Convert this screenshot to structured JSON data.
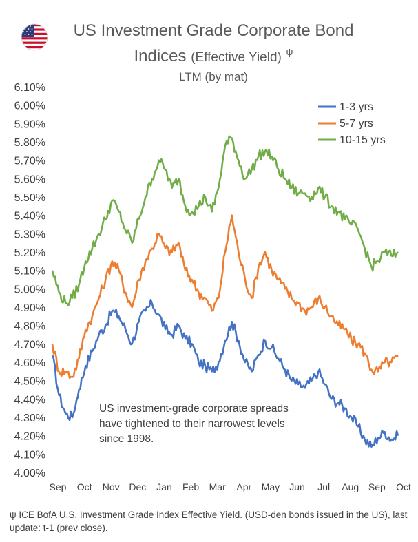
{
  "header": {
    "flag_icon": "us-flag-icon",
    "title_line1": "US Investment Grade Corporate Bond",
    "title_line2_main": "Indices",
    "title_line2_paren": "(Effective Yield)",
    "title_line2_mark": "ψ",
    "subtitle": "LTM (by mat)"
  },
  "footnote": "ψ ICE BofA U.S. Investment Grade Index Effective Yield. (USD-den bonds issued in the US), last update: t-1 (prev close).",
  "chart_data": {
    "type": "line",
    "title": "US Investment Grade Corporate Bond Indices (Effective Yield) ψ",
    "subtitle": "LTM (by mat)",
    "ylim": [
      4.0,
      6.1
    ],
    "yticks": [
      "4.00%",
      "4.10%",
      "4.20%",
      "4.30%",
      "4.40%",
      "4.50%",
      "4.60%",
      "4.70%",
      "4.80%",
      "4.90%",
      "5.00%",
      "5.10%",
      "5.20%",
      "5.30%",
      "5.40%",
      "5.50%",
      "5.60%",
      "5.70%",
      "5.80%",
      "5.90%",
      "6.00%",
      "6.10%"
    ],
    "xticks": [
      "Sep",
      "Oct",
      "Nov",
      "Dec",
      "Jan",
      "Feb",
      "Mar",
      "Apr",
      "May",
      "Jun",
      "Jul",
      "Aug",
      "Sep",
      "Oct"
    ],
    "grid": false,
    "legend_position": "top-right",
    "annotation": [
      "US investment-grade corporate spreads",
      "have tightened to their narrowest levels",
      "since 1998."
    ],
    "x": [
      0,
      0.25,
      0.5,
      0.75,
      1,
      1.25,
      1.5,
      1.75,
      2,
      2.25,
      2.5,
      2.75,
      3,
      3.25,
      3.5,
      3.75,
      4,
      4.25,
      4.5,
      4.75,
      5,
      5.25,
      5.5,
      5.75,
      6,
      6.25,
      6.5,
      6.75,
      7,
      7.25,
      7.5,
      7.75,
      8,
      8.25,
      8.5,
      8.75,
      9,
      9.25,
      9.5,
      9.75,
      10,
      10.25,
      10.5,
      10.75,
      11,
      11.25,
      11.5,
      11.75,
      12,
      12.25,
      12.5,
      12.75,
      13
    ],
    "series": [
      {
        "name": "1-3 yrs",
        "color": "#4472C4",
        "values": [
          4.64,
          4.42,
          4.32,
          4.3,
          4.45,
          4.58,
          4.66,
          4.75,
          4.8,
          4.88,
          4.85,
          4.78,
          4.7,
          4.82,
          4.88,
          4.92,
          4.86,
          4.78,
          4.75,
          4.8,
          4.73,
          4.7,
          4.6,
          4.58,
          4.55,
          4.6,
          4.72,
          4.82,
          4.72,
          4.6,
          4.55,
          4.64,
          4.72,
          4.68,
          4.62,
          4.56,
          4.5,
          4.48,
          4.46,
          4.5,
          4.55,
          4.48,
          4.4,
          4.38,
          4.35,
          4.3,
          4.25,
          4.18,
          4.14,
          4.19,
          4.22,
          4.18,
          4.2
        ]
      },
      {
        "name": "5-7 yrs",
        "color": "#ED7D31",
        "values": [
          4.7,
          4.55,
          4.55,
          4.52,
          4.62,
          4.78,
          4.85,
          4.95,
          5.05,
          5.15,
          5.1,
          4.98,
          4.9,
          5.05,
          5.15,
          5.22,
          5.3,
          5.22,
          5.2,
          5.25,
          5.1,
          5.05,
          4.98,
          4.95,
          4.88,
          4.95,
          5.2,
          5.4,
          5.2,
          5.05,
          4.95,
          5.12,
          5.2,
          5.1,
          5.05,
          5.0,
          4.95,
          4.92,
          4.88,
          4.9,
          4.95,
          4.9,
          4.85,
          4.8,
          4.78,
          4.72,
          4.7,
          4.65,
          4.56,
          4.55,
          4.6,
          4.6,
          4.63
        ]
      },
      {
        "name": "10-15 yrs",
        "color": "#70AD47",
        "values": [
          5.1,
          4.98,
          4.92,
          4.95,
          5.02,
          5.15,
          5.22,
          5.3,
          5.38,
          5.48,
          5.42,
          5.32,
          5.25,
          5.38,
          5.5,
          5.6,
          5.7,
          5.65,
          5.55,
          5.6,
          5.45,
          5.42,
          5.45,
          5.5,
          5.42,
          5.55,
          5.78,
          5.82,
          5.7,
          5.6,
          5.65,
          5.72,
          5.75,
          5.72,
          5.65,
          5.6,
          5.55,
          5.52,
          5.52,
          5.5,
          5.55,
          5.5,
          5.45,
          5.42,
          5.38,
          5.35,
          5.32,
          5.22,
          5.12,
          5.15,
          5.2,
          5.18,
          5.2
        ]
      }
    ]
  }
}
